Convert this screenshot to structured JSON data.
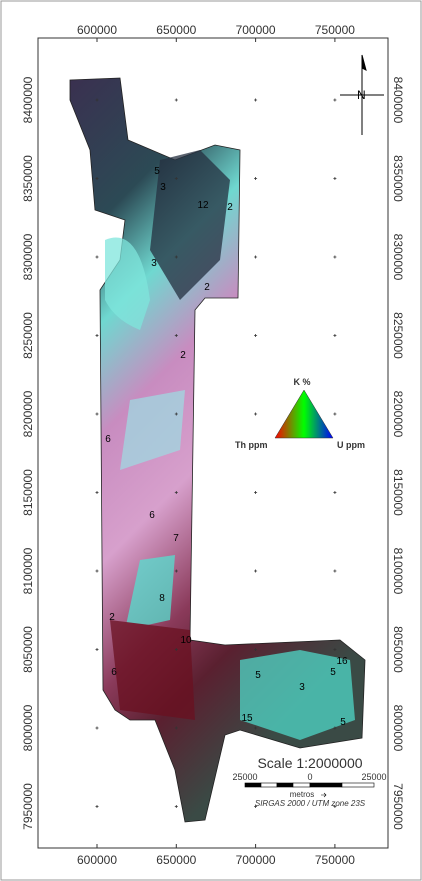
{
  "map": {
    "x_ticks": [
      600000,
      650000,
      700000,
      750000
    ],
    "y_ticks": [
      8400000,
      8350000,
      8300000,
      8250000,
      8200000,
      8150000,
      8100000,
      8050000,
      8000000,
      7950000
    ],
    "north_arrow": "N",
    "ternary": {
      "top": "K %",
      "left": "Th ppm",
      "right": "U ppm"
    },
    "scale": {
      "title": "Scale 1:2000000",
      "ticks": [
        "25000",
        "0",
        "25000"
      ],
      "unit": "metros",
      "crs": "SIRGAS 2000 / UTM zone 23S"
    },
    "unit_labels": [
      "5",
      "3",
      "12",
      "2",
      "3",
      "2",
      "2",
      "6",
      "6",
      "7",
      "8",
      "2",
      "10",
      "6",
      "5",
      "3",
      "16",
      "5",
      "15",
      "5"
    ]
  }
}
